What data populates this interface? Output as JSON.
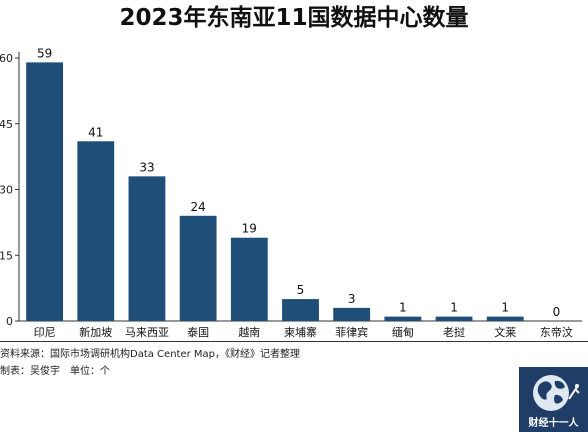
{
  "chart_data": {
    "type": "bar",
    "title": "2023年东南亚11国数据中心数量",
    "categories": [
      "印尼",
      "新加坡",
      "马来西亚",
      "泰国",
      "越南",
      "柬埔寨",
      "菲律宾",
      "缅甸",
      "老挝",
      "文莱",
      "东帝汶"
    ],
    "values": [
      59,
      41,
      33,
      24,
      19,
      5,
      3,
      1,
      1,
      1,
      0
    ],
    "ylim": [
      0,
      60
    ],
    "yticks": [
      0,
      15,
      30,
      45,
      60
    ],
    "yticks_visible": [
      "0",
      "15",
      "30",
      "45",
      "60"
    ],
    "grid": false,
    "bar_color": "#1f4e79",
    "xlabel": "",
    "ylabel": ""
  },
  "notes": {
    "source": "资料来源：国际市场调研机构Data Center Map，《财经》记者整理",
    "maker": "制表：吴俊宇　单位：个"
  },
  "logo": {
    "text": "财经十一人",
    "icon": "globe-icon",
    "color": "#1f3d66"
  }
}
